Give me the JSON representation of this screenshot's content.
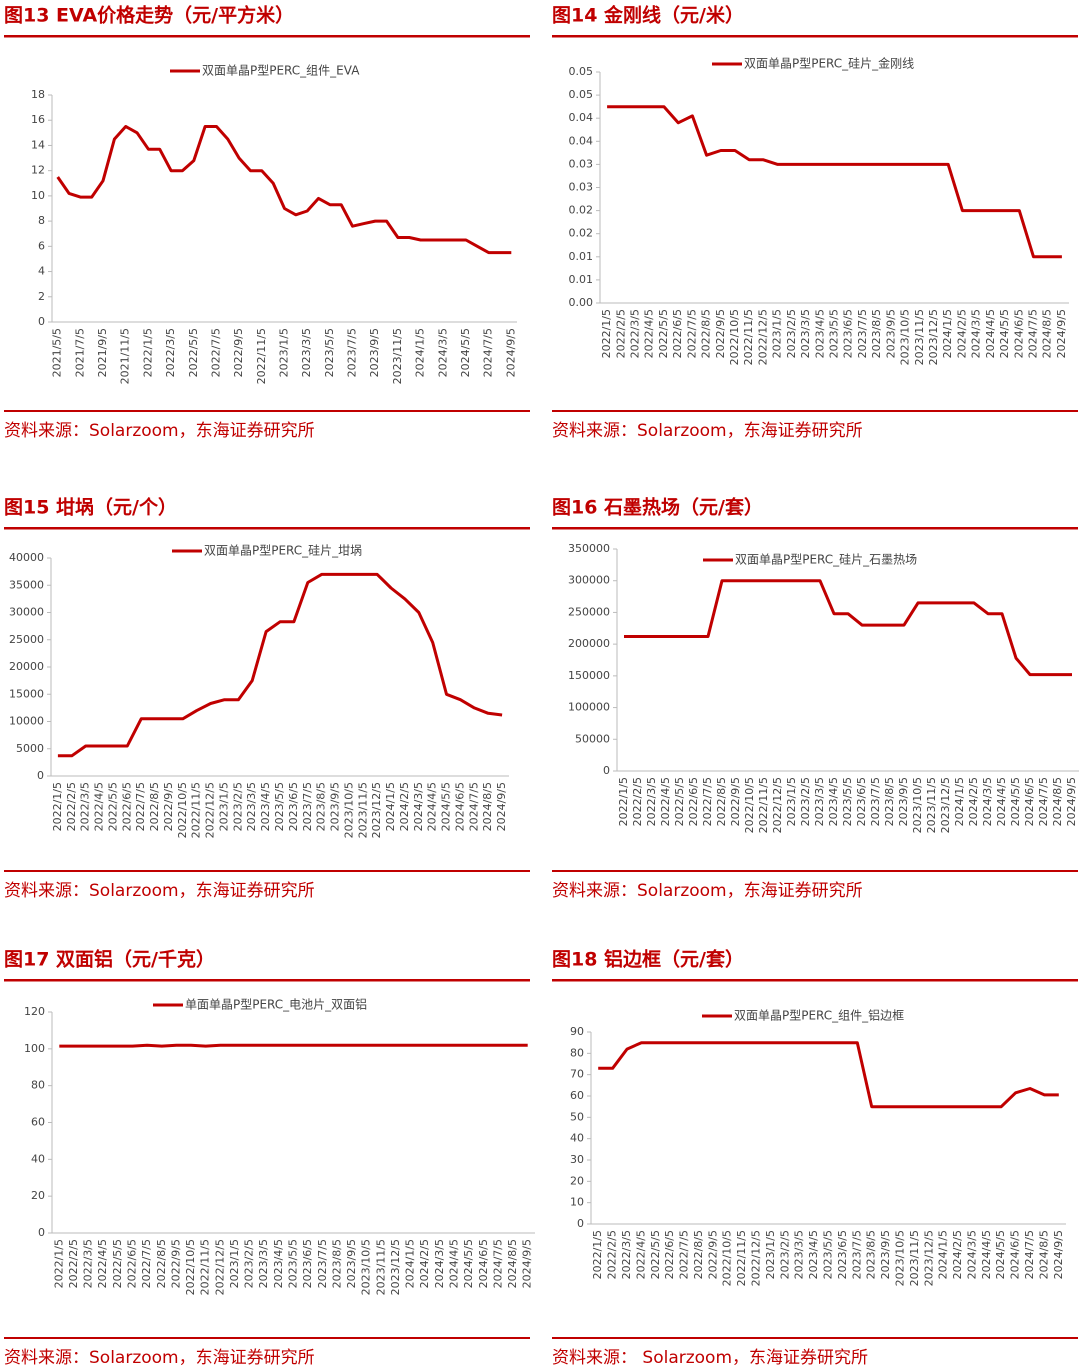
{
  "chart_data": [
    {
      "type": "line",
      "title": "图13 EVA价格走势（元/平方米）",
      "source": "资料来源：Solarzoom，东海证券研究所",
      "categories": [
        "2021/5/5",
        null,
        "2021/7/5",
        null,
        "2021/9/5",
        null,
        "2021/11/5",
        null,
        "2022/1/5",
        null,
        "2022/3/5",
        null,
        "2022/5/5",
        null,
        "2022/7/5",
        null,
        "2022/9/5",
        null,
        "2022/11/5",
        null,
        "2023/1/5",
        null,
        "2023/3/5",
        null,
        "2023/5/5",
        null,
        "2023/7/5",
        null,
        "2023/9/5",
        null,
        "2023/11/5",
        null,
        "2024/1/5",
        null,
        "2024/3/5",
        null,
        "2024/5/5",
        null,
        "2024/7/5",
        null,
        "2024/9/5"
      ],
      "series": [
        {
          "name": "双面单晶P型PERC_组件_EVA",
          "color": "#c00000",
          "values": [
            11.5,
            10.2,
            9.9,
            9.9,
            11.2,
            14.5,
            15.5,
            15.0,
            13.7,
            13.7,
            12.0,
            12.0,
            12.8,
            15.5,
            15.5,
            14.5,
            13.0,
            12.0,
            12.0,
            11.0,
            9.0,
            8.5,
            8.8,
            9.8,
            9.3,
            9.3,
            7.6,
            7.8,
            8.0,
            8.0,
            6.7,
            6.7,
            6.5,
            6.5,
            6.5,
            6.5,
            6.5,
            6.0,
            5.5,
            5.5,
            5.5
          ]
        }
      ],
      "ylim": [
        0,
        18
      ],
      "yticks": [
        0,
        2,
        4,
        6,
        8,
        10,
        12,
        14,
        16,
        18
      ]
    },
    {
      "type": "line",
      "title": "图14 金刚线（元/米）",
      "source": "资料来源：Solarzoom，东海证券研究所",
      "categories": [
        "2022/1/5",
        "2022/2/5",
        "2022/3/5",
        "2022/4/5",
        "2022/5/5",
        "2022/6/5",
        "2022/7/5",
        "2022/8/5",
        "2022/9/5",
        "2022/10/5",
        "2022/11/5",
        "2022/12/5",
        "2023/1/5",
        "2023/2/5",
        "2023/3/5",
        "2023/4/5",
        "2023/5/5",
        "2023/6/5",
        "2023/7/5",
        "2023/8/5",
        "2023/9/5",
        "2023/10/5",
        "2023/11/5",
        "2023/12/5",
        "2024/1/5",
        "2024/2/5",
        "2024/3/5",
        "2024/4/5",
        "2024/5/5",
        "2024/6/5",
        "2024/7/5",
        "2024/8/5",
        "2024/9/5"
      ],
      "series": [
        {
          "name": "双面单晶P型PERC_硅片_金刚线",
          "color": "#c00000",
          "values": [
            0.0425,
            0.0425,
            0.0425,
            0.0425,
            0.0425,
            0.039,
            0.0405,
            0.032,
            0.033,
            0.033,
            0.031,
            0.031,
            0.03,
            0.03,
            0.03,
            0.03,
            0.03,
            0.03,
            0.03,
            0.03,
            0.03,
            0.03,
            0.03,
            0.03,
            0.03,
            0.02,
            0.02,
            0.02,
            0.02,
            0.02,
            0.01,
            0.01,
            0.01
          ]
        }
      ],
      "ylim": [
        0,
        0.05
      ],
      "yticks": [
        {
          "value": 0,
          "label": "0.00"
        },
        {
          "value": 0.005,
          "label": "0.01"
        },
        0.01,
        {
          "value": 0.015,
          "label": "0.02"
        },
        0.02,
        {
          "value": 0.025,
          "label": "0.03"
        },
        0.03,
        {
          "value": 0.035,
          "label": "0.04"
        },
        0.04,
        {
          "value": 0.045,
          "label": "0.05"
        },
        0.05
      ]
    },
    {
      "type": "line",
      "title": "图15 坩埚（元/个）",
      "source": "资料来源：Solarzoom，东海证券研究所",
      "categories": [
        "2022/1/5",
        "2022/2/5",
        "2022/3/5",
        "2022/4/5",
        "2022/5/5",
        "2022/6/5",
        "2022/7/5",
        "2022/8/5",
        "2022/9/5",
        "2022/10/5",
        "2022/11/5",
        "2022/12/5",
        "2023/1/5",
        "2023/2/5",
        "2023/3/5",
        "2023/4/5",
        "2023/5/5",
        "2023/6/5",
        "2023/7/5",
        "2023/8/5",
        "2023/9/5",
        "2023/10/5",
        "2023/11/5",
        "2023/12/5",
        "2024/1/5",
        "2024/2/5",
        "2024/3/5",
        "2024/4/5",
        "2024/5/5",
        "2024/6/5",
        "2024/7/5",
        "2024/8/5",
        "2024/9/5"
      ],
      "series": [
        {
          "name": "双面单晶P型PERC_硅片_坩埚",
          "color": "#c00000",
          "values": [
            3700,
            3700,
            5500,
            5500,
            5500,
            5500,
            10500,
            10500,
            10500,
            10500,
            12000,
            13300,
            14000,
            14000,
            17500,
            26500,
            28300,
            28300,
            35500,
            37000,
            37000,
            37000,
            37000,
            37000,
            34500,
            32500,
            30000,
            24500,
            15000,
            14000,
            12500,
            11500,
            11200
          ]
        }
      ],
      "ylim": [
        0,
        40000
      ],
      "yticks": [
        0,
        5000,
        10000,
        15000,
        20000,
        25000,
        30000,
        35000,
        40000
      ]
    },
    {
      "type": "line",
      "title": "图16 石墨热场（元/套）",
      "source": "资料来源：Solarzoom，东海证券研究所",
      "categories": [
        "2022/1/5",
        "2022/2/5",
        "2022/3/5",
        "2022/4/5",
        "2022/5/5",
        "2022/6/5",
        "2022/7/5",
        "2022/8/5",
        "2022/9/5",
        "2022/10/5",
        "2022/11/5",
        "2022/12/5",
        "2023/1/5",
        "2023/2/5",
        "2023/3/5",
        "2023/4/5",
        "2023/5/5",
        "2023/6/5",
        "2023/7/5",
        "2023/8/5",
        "2023/9/5",
        "2023/10/5",
        "2023/11/5",
        "2023/12/5",
        "2024/1/5",
        "2024/2/5",
        "2024/3/5",
        "2024/4/5",
        "2024/5/5",
        "2024/6/5",
        "2024/7/5",
        "2024/8/5",
        "2024/9/5"
      ],
      "series": [
        {
          "name": "双面单晶P型PERC_硅片_石墨热场",
          "color": "#c00000",
          "values": [
            212000,
            212000,
            212000,
            212000,
            212000,
            212000,
            212000,
            300000,
            300000,
            300000,
            300000,
            300000,
            300000,
            300000,
            300000,
            248000,
            248000,
            230000,
            230000,
            230000,
            230000,
            265000,
            265000,
            265000,
            265000,
            265000,
            248000,
            248000,
            178000,
            152000,
            152000,
            152000,
            152000
          ]
        }
      ],
      "ylim": [
        0,
        350000
      ],
      "yticks": [
        0,
        50000,
        100000,
        150000,
        200000,
        250000,
        300000,
        350000
      ]
    },
    {
      "type": "line",
      "title": "图17 双面铝（元/千克）",
      "source": "资料来源：Solarzoom，东海证券研究所",
      "categories": [
        "2022/1/5",
        "2022/2/5",
        "2022/3/5",
        "2022/4/5",
        "2022/5/5",
        "2022/6/5",
        "2022/7/5",
        "2022/8/5",
        "2022/9/5",
        "2022/10/5",
        "2022/11/5",
        "2022/12/5",
        "2023/1/5",
        "2023/2/5",
        "2023/3/5",
        "2023/4/5",
        "2023/5/5",
        "2023/6/5",
        "2023/7/5",
        "2023/8/5",
        "2023/9/5",
        "2023/10/5",
        "2023/11/5",
        "2023/12/5",
        "2024/1/5",
        "2024/2/5",
        "2024/3/5",
        "2024/4/5",
        "2024/5/5",
        "2024/6/5",
        "2024/7/5",
        "2024/8/5",
        "2024/9/5"
      ],
      "series": [
        {
          "name": "单面单晶P型PERC_电池片_双面铝",
          "color": "#c00000",
          "values": [
            101.5,
            101.5,
            101.5,
            101.5,
            101.5,
            101.5,
            102,
            101.5,
            102,
            102,
            101.5,
            102,
            102,
            102,
            102,
            102,
            102,
            102,
            102,
            102,
            102,
            102,
            102,
            102,
            102,
            102,
            102,
            102,
            102,
            102,
            102,
            102,
            102
          ]
        }
      ],
      "ylim": [
        0,
        120
      ],
      "yticks": [
        0,
        20,
        40,
        60,
        80,
        100,
        120
      ]
    },
    {
      "type": "line",
      "title": "图18 铝边框（元/套）",
      "source": "资料来源： Solarzoom，东海证券研究所",
      "categories": [
        "2022/1/5",
        "2022/2/5",
        "2022/3/5",
        "2022/4/5",
        "2022/5/5",
        "2022/6/5",
        "2022/7/5",
        "2022/8/5",
        "2022/9/5",
        "2022/10/5",
        "2022/11/5",
        "2022/12/5",
        "2023/1/5",
        "2023/2/5",
        "2023/3/5",
        "2023/4/5",
        "2023/5/5",
        "2023/6/5",
        "2023/7/5",
        "2023/8/5",
        "2023/9/5",
        "2023/10/5",
        "2023/11/5",
        "2023/12/5",
        "2024/1/5",
        "2024/2/5",
        "2024/3/5",
        "2024/4/5",
        "2024/5/5",
        "2024/6/5",
        "2024/7/5",
        "2024/8/5",
        "2024/9/5"
      ],
      "series": [
        {
          "name": "双面单晶P型PERC_组件_铝边框",
          "color": "#c00000",
          "values": [
            73,
            73,
            82,
            85,
            85,
            85,
            85,
            85,
            85,
            85,
            85,
            85,
            85,
            85,
            85,
            85,
            85,
            85,
            85,
            55,
            55,
            55,
            55,
            55,
            55,
            55,
            55,
            55,
            55,
            61.5,
            63.5,
            60.5,
            60.5
          ]
        }
      ],
      "ylim": [
        0,
        90
      ],
      "yticks": [
        0,
        10,
        20,
        30,
        40,
        50,
        60,
        70,
        80,
        90
      ]
    }
  ]
}
